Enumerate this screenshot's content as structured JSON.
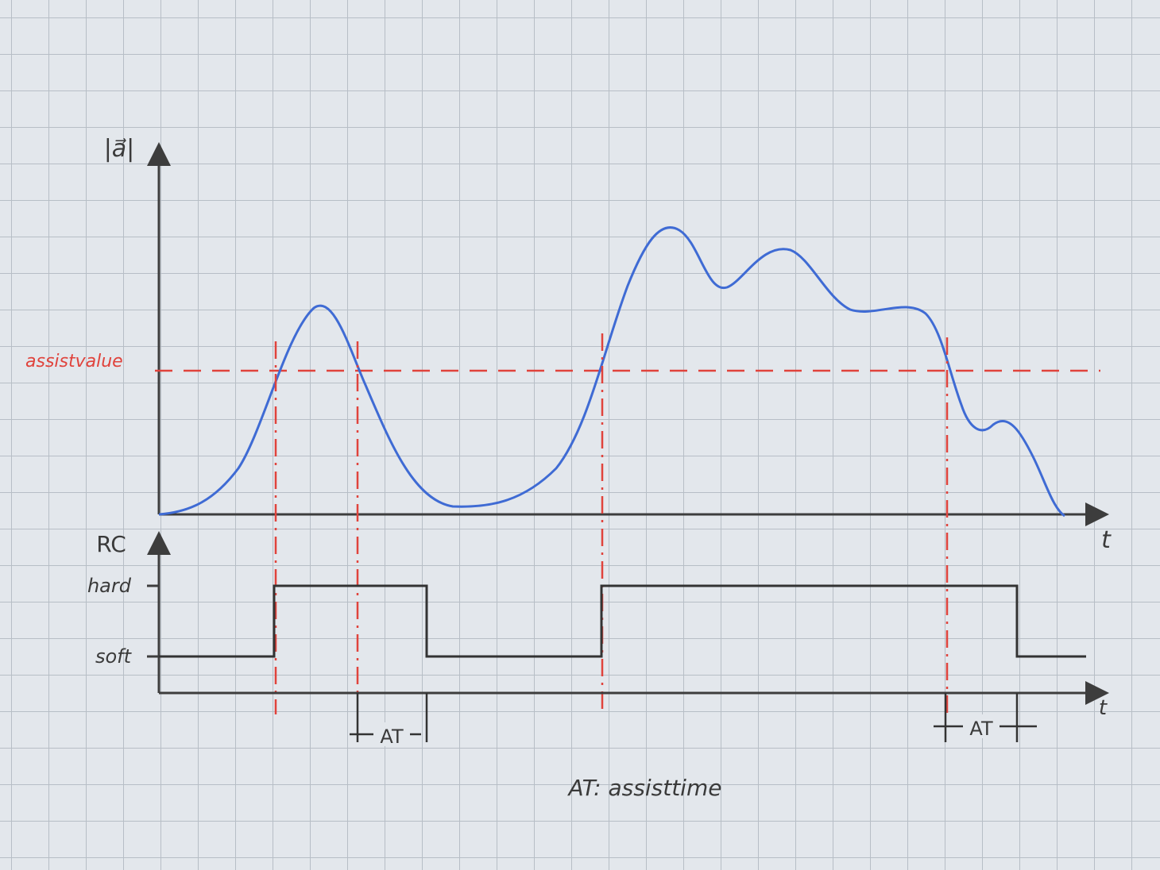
{
  "top_plot": {
    "y_axis_label": "|a⃗|",
    "x_axis_label": "t",
    "threshold_label": "assistvalue"
  },
  "bottom_plot": {
    "y_axis_label": "RC",
    "levels": [
      "hard",
      "soft"
    ],
    "x_axis_label": "t"
  },
  "interval_labels": [
    "AT",
    "AT"
  ],
  "legend": "AT: assisttime"
}
